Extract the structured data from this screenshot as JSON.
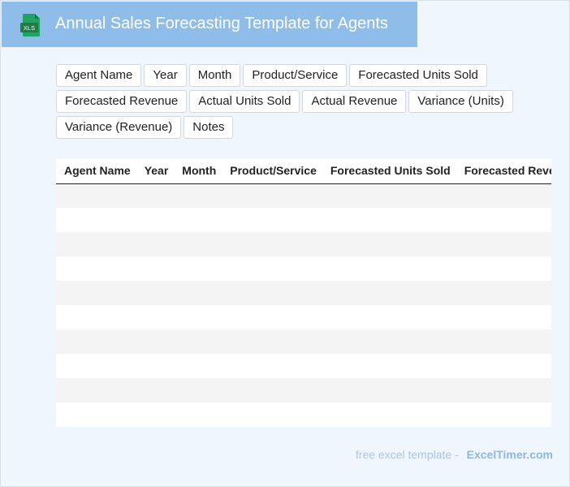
{
  "header": {
    "icon_label": "XLS",
    "title": "Annual Sales Forecasting Template for Agents",
    "colors": {
      "header_bg": "#8fbde9",
      "icon_green": "#1e7d45",
      "page_bg": "#f0f6fe"
    }
  },
  "fields": [
    "Agent Name",
    "Year",
    "Month",
    "Product/Service",
    "Forecasted Units Sold",
    "Forecasted Revenue",
    "Actual Units Sold",
    "Actual Revenue",
    "Variance (Units)",
    "Variance (Revenue)",
    "Notes"
  ],
  "table": {
    "columns": [
      "Agent Name",
      "Year",
      "Month",
      "Product/Service",
      "Forecasted Units Sold",
      "Forecasted Revenue"
    ],
    "rows": [
      [
        "",
        "",
        "",
        "",
        "",
        ""
      ],
      [
        "",
        "",
        "",
        "",
        "",
        ""
      ],
      [
        "",
        "",
        "",
        "",
        "",
        ""
      ],
      [
        "",
        "",
        "",
        "",
        "",
        ""
      ],
      [
        "",
        "",
        "",
        "",
        "",
        ""
      ],
      [
        "",
        "",
        "",
        "",
        "",
        ""
      ],
      [
        "",
        "",
        "",
        "",
        "",
        ""
      ],
      [
        "",
        "",
        "",
        "",
        "",
        ""
      ],
      [
        "",
        "",
        "",
        "",
        "",
        ""
      ],
      [
        "",
        "",
        "",
        "",
        "",
        ""
      ]
    ]
  },
  "footer": {
    "lead": "free excel template -",
    "brand": "ExcelTimer.com"
  }
}
